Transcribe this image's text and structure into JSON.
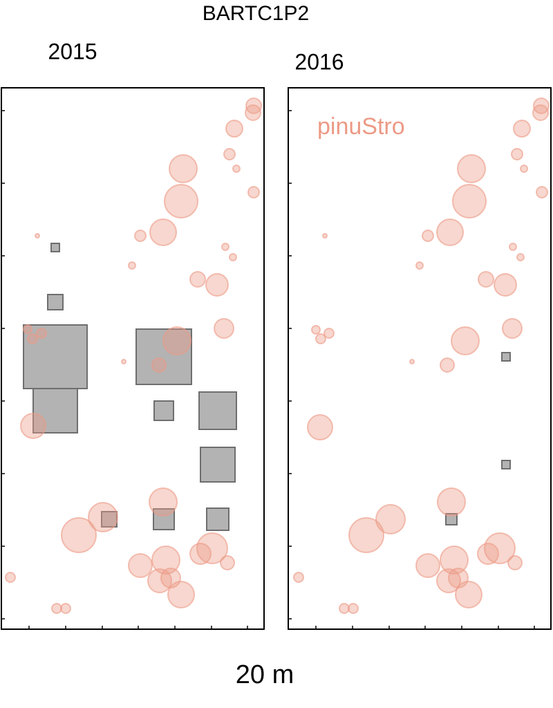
{
  "title": "BARTC1P2",
  "xlabel": "20 m",
  "chart_data": [
    {
      "type": "scatter",
      "title": "2015",
      "xlim": [
        0,
        380
      ],
      "ylim": [
        0,
        783
      ],
      "xticks": [
        40,
        93,
        146,
        198,
        251,
        304,
        356
      ],
      "yticks": [
        15,
        120,
        225,
        330,
        435,
        540,
        645,
        750
      ],
      "series": [
        {
          "marker": "square",
          "color": "#b3b3b3",
          "x": [
            78,
            78,
            78,
            78,
            235,
            235,
            313,
            313,
            156,
            235,
            313
          ],
          "y": [
            552,
            473,
            394,
            316,
            394,
            316,
            316,
            238,
            159,
            159,
            159
          ],
          "sizes": [
            6,
            11,
            46,
            32,
            40,
            14,
            27,
            25,
            11,
            15,
            16
          ]
        },
        {
          "marker": "circle",
          "color": "#ec9a86",
          "x": [
            365,
            364,
            337,
            330,
            340,
            263,
            365,
            260,
            234,
            201,
            52,
            324,
            335,
            189,
            284,
            312,
            322,
            38,
            58,
            45,
            254,
            228,
            177,
            46,
            234,
            147,
            112,
            305,
            288,
            238,
            201,
            327,
            229,
            245,
            260,
            13,
            80,
            93
          ],
          "y": [
            757,
            747,
            724,
            687,
            666,
            666,
            632,
            619,
            574,
            569,
            569,
            553,
            538,
            526,
            506,
            498,
            435,
            434,
            428,
            420,
            417,
            382,
            387,
            294,
            184,
            162,
            136,
            117,
            109,
            100,
            92,
            96,
            70,
            74,
            50,
            75,
            30,
            30
          ],
          "sizes": [
            11,
            11,
            12,
            8,
            5,
            20,
            8,
            24,
            19,
            8,
            3,
            5,
            5,
            5,
            11,
            16,
            14,
            6,
            7,
            7,
            20,
            10,
            3,
            18,
            20,
            21,
            25,
            22,
            15,
            20,
            17,
            10,
            17,
            14,
            19,
            7,
            7,
            7
          ]
        }
      ]
    },
    {
      "type": "scatter",
      "title": "2016",
      "xlim": [
        0,
        380
      ],
      "ylim": [
        0,
        783
      ],
      "legend": "upper left",
      "xticks": [
        40,
        93,
        146,
        198,
        251,
        304,
        356
      ],
      "yticks": [
        15,
        120,
        225,
        330,
        435,
        540,
        645,
        750
      ],
      "series": [
        {
          "marker": "square",
          "color": "#b3b3b3",
          "x": [
            315,
            315,
            236
          ],
          "y": [
            394,
            238,
            159
          ],
          "sizes": [
            6,
            6,
            8
          ]
        },
        {
          "name": "pinuStro",
          "marker": "circle",
          "color": "#ec9a86",
          "x": [
            366,
            365,
            338,
            331,
            341,
            265,
            367,
            262,
            234,
            202,
            53,
            325,
            336,
            190,
            286,
            314,
            324,
            40,
            59,
            47,
            256,
            230,
            179,
            46,
            236,
            148,
            113,
            306,
            289,
            240,
            202,
            328,
            232,
            246,
            261,
            15,
            81,
            94
          ],
          "y": [
            757,
            747,
            724,
            687,
            666,
            666,
            632,
            619,
            574,
            569,
            569,
            553,
            538,
            526,
            506,
            498,
            435,
            433,
            428,
            420,
            417,
            382,
            387,
            292,
            184,
            159,
            136,
            117,
            109,
            100,
            92,
            96,
            70,
            74,
            50,
            75,
            30,
            30
          ],
          "sizes": [
            11,
            11,
            12,
            8,
            5,
            20,
            8,
            24,
            19,
            8,
            3,
            5,
            5,
            5,
            11,
            16,
            14,
            6,
            7,
            7,
            20,
            10,
            3,
            18,
            20,
            21,
            25,
            22,
            15,
            20,
            17,
            10,
            17,
            14,
            19,
            7,
            7,
            7
          ]
        }
      ]
    }
  ]
}
